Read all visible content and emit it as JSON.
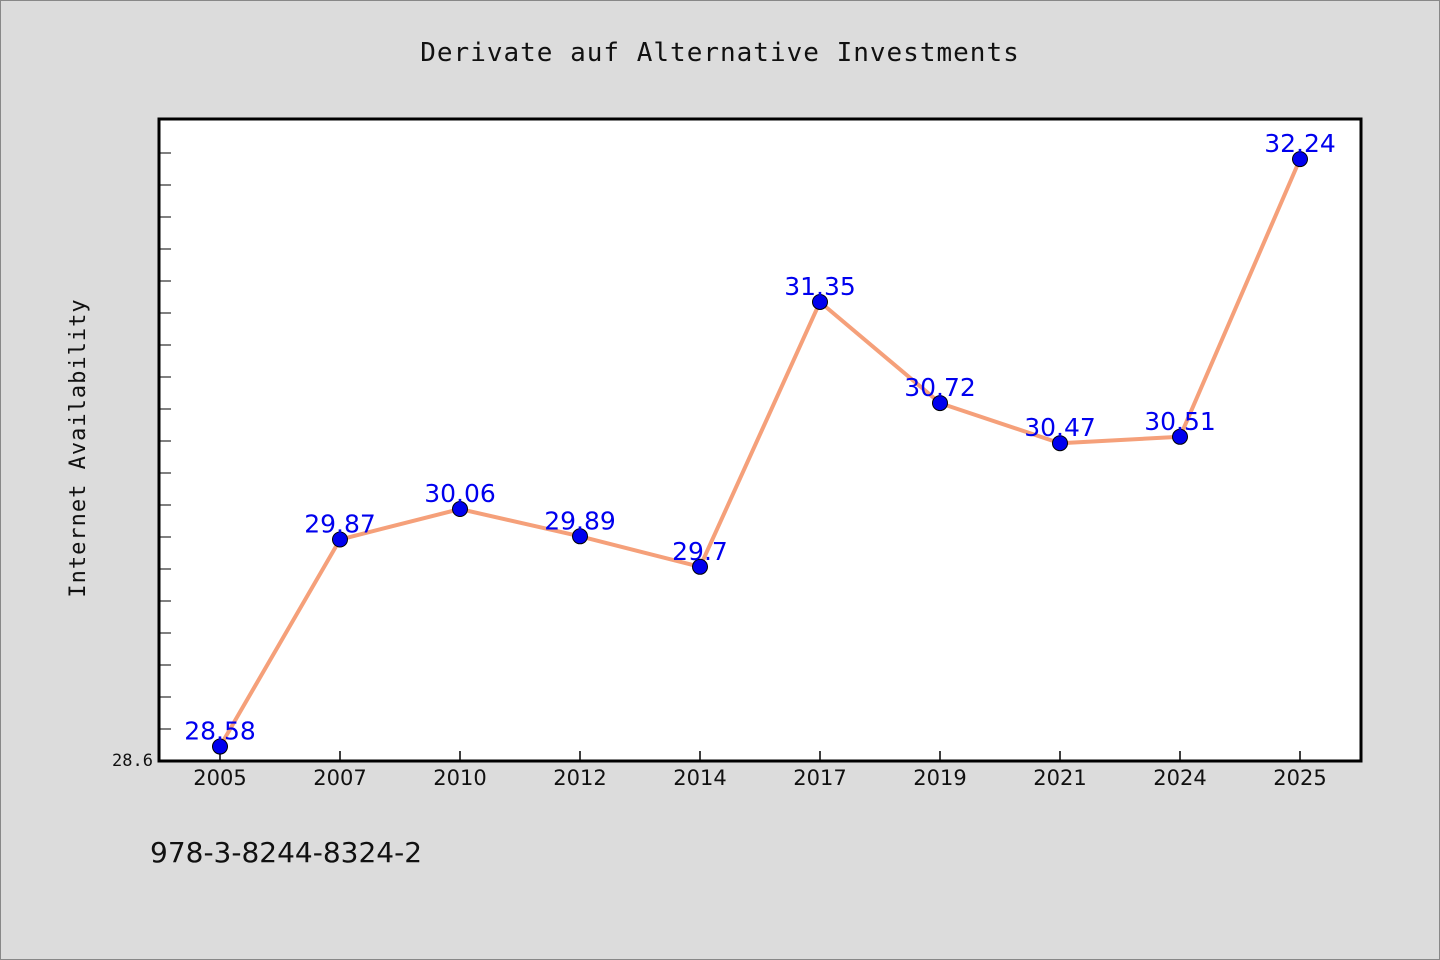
{
  "chart_data": {
    "type": "line",
    "title": "Derivate auf Alternative Investments",
    "xlabel": "",
    "ylabel": "Internet Availability",
    "categories": [
      "2005",
      "2007",
      "2010",
      "2012",
      "2014",
      "2017",
      "2019",
      "2021",
      "2024",
      "2025"
    ],
    "series": [
      {
        "values": [
          28.58,
          29.87,
          30.06,
          29.89,
          29.7,
          31.35,
          30.72,
          30.47,
          30.51,
          32.24
        ]
      }
    ],
    "data_labels": [
      "28.58",
      "29.87",
      "30.06",
      "29.89",
      "29.7",
      "31.35",
      "30.72",
      "30.47",
      "30.51",
      "32.24"
    ],
    "y_tick_labels": [
      "28.6"
    ],
    "ylim": [
      28.49,
      32.49
    ],
    "grid": false,
    "legend": "none",
    "colors": {
      "line": "#f5a07a",
      "marker": "#0000ee",
      "label": "#0000ee",
      "plot_bg": "#ffffff",
      "page_bg": "#dcdcdc"
    }
  },
  "footer": {
    "isbn": "978-3-8244-8324-2"
  }
}
